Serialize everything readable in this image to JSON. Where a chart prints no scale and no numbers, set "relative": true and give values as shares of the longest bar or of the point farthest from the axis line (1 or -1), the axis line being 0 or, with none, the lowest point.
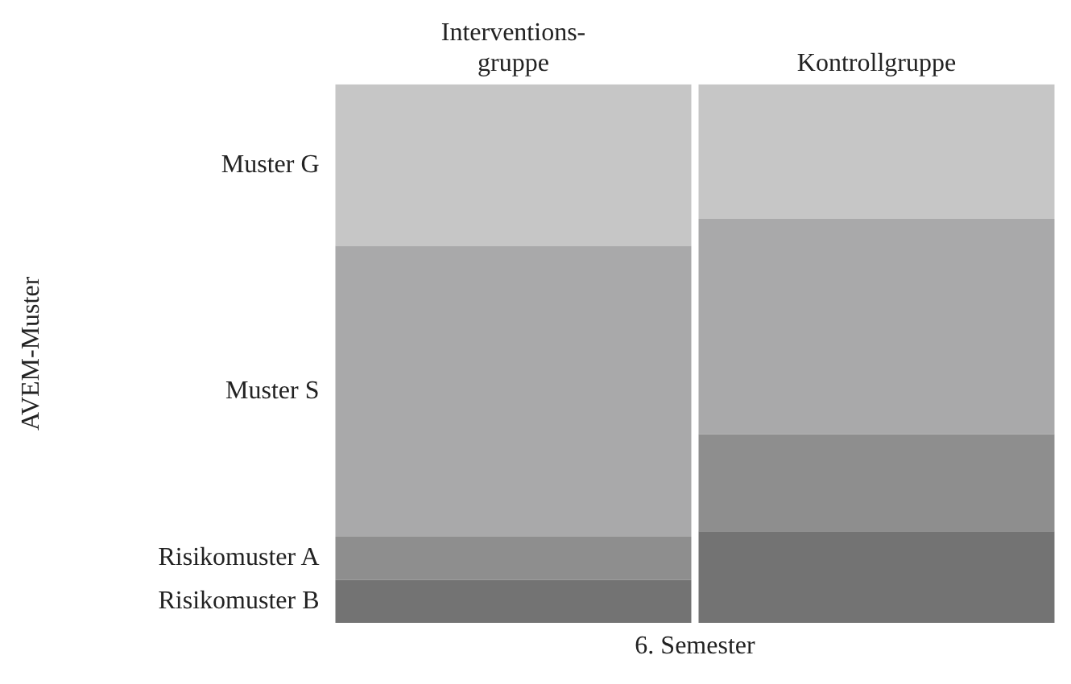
{
  "chart_data": {
    "type": "bar",
    "stacked": true,
    "relative": true,
    "xlabel": "6. Semester",
    "annotations": [
      "AVEM-Muster"
    ],
    "categories": [
      "Interventions-gruppe",
      "Kontrollgruppe"
    ],
    "series": [
      {
        "name": "Risikomuster B",
        "color": "#737373",
        "values": [
          0.08,
          0.17
        ]
      },
      {
        "name": "Risikomuster A",
        "color": "#8e8e8e",
        "values": [
          0.08,
          0.18
        ]
      },
      {
        "name": "Muster S",
        "color": "#a9a9aa",
        "values": [
          0.54,
          0.4
        ]
      },
      {
        "name": "Muster G",
        "color": "#c6c6c6",
        "values": [
          0.3,
          0.25
        ]
      }
    ]
  }
}
